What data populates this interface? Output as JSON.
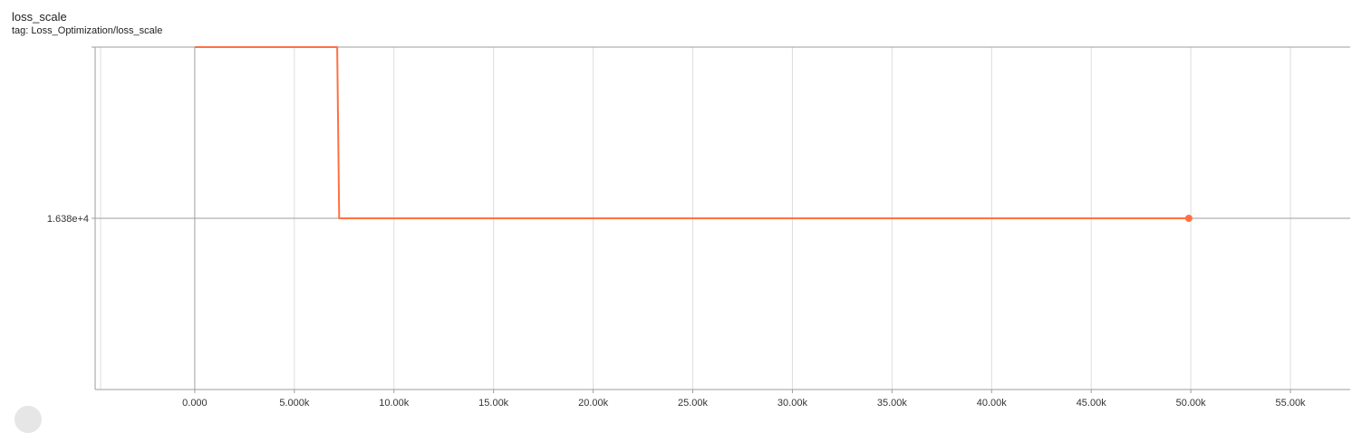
{
  "card": {
    "title": "loss_scale",
    "tag": "tag: Loss_Optimization/loss_scale"
  },
  "chart_data": {
    "type": "line",
    "title": "loss_scale",
    "xlabel": "",
    "ylabel": "",
    "xlim": [
      -5000,
      58000
    ],
    "ylim": [
      0,
      32768
    ],
    "x_ticks": [
      0,
      5000,
      10000,
      15000,
      20000,
      25000,
      30000,
      35000,
      40000,
      45000,
      50000,
      55000
    ],
    "x_tick_labels": [
      "0.000",
      "5.000k",
      "10.00k",
      "15.00k",
      "20.00k",
      "25.00k",
      "30.00k",
      "35.00k",
      "40.00k",
      "45.00k",
      "50.00k",
      "55.00k"
    ],
    "y_ticks": [
      16384
    ],
    "y_tick_labels": [
      "1.638e+4"
    ],
    "grid": true,
    "legend": "none",
    "series": [
      {
        "color": "#ff7043",
        "x": [
          0,
          7150,
          7250,
          49900
        ],
        "y": [
          32768,
          32768,
          16384,
          16384
        ]
      }
    ],
    "last_point": {
      "x": 49900,
      "y": 16384
    }
  },
  "colors": {
    "line": "#ff7043",
    "grid": "#dddddd",
    "axis": "#9e9e9e",
    "zero_line": "#a0a0a0"
  }
}
